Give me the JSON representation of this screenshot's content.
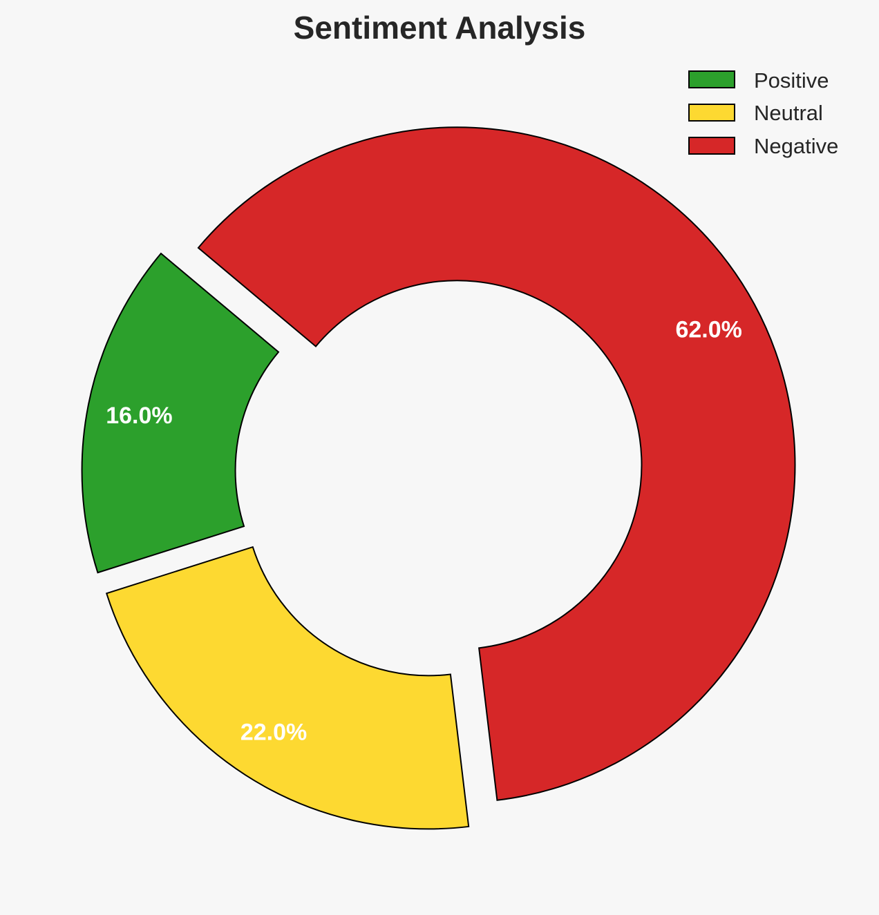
{
  "chart_data": {
    "type": "pie",
    "variant": "donut",
    "title": "Sentiment Analysis",
    "categories": [
      "Positive",
      "Neutral",
      "Negative"
    ],
    "values": [
      16.0,
      22.0,
      62.0
    ],
    "labels": [
      "16.0%",
      "22.0%",
      "62.0%"
    ],
    "colors": [
      "#2ca02c",
      "#fdd931",
      "#d62728"
    ],
    "exploded": true,
    "legend": {
      "placement": "top-right",
      "entries": [
        "Positive",
        "Neutral",
        "Negative"
      ]
    }
  }
}
